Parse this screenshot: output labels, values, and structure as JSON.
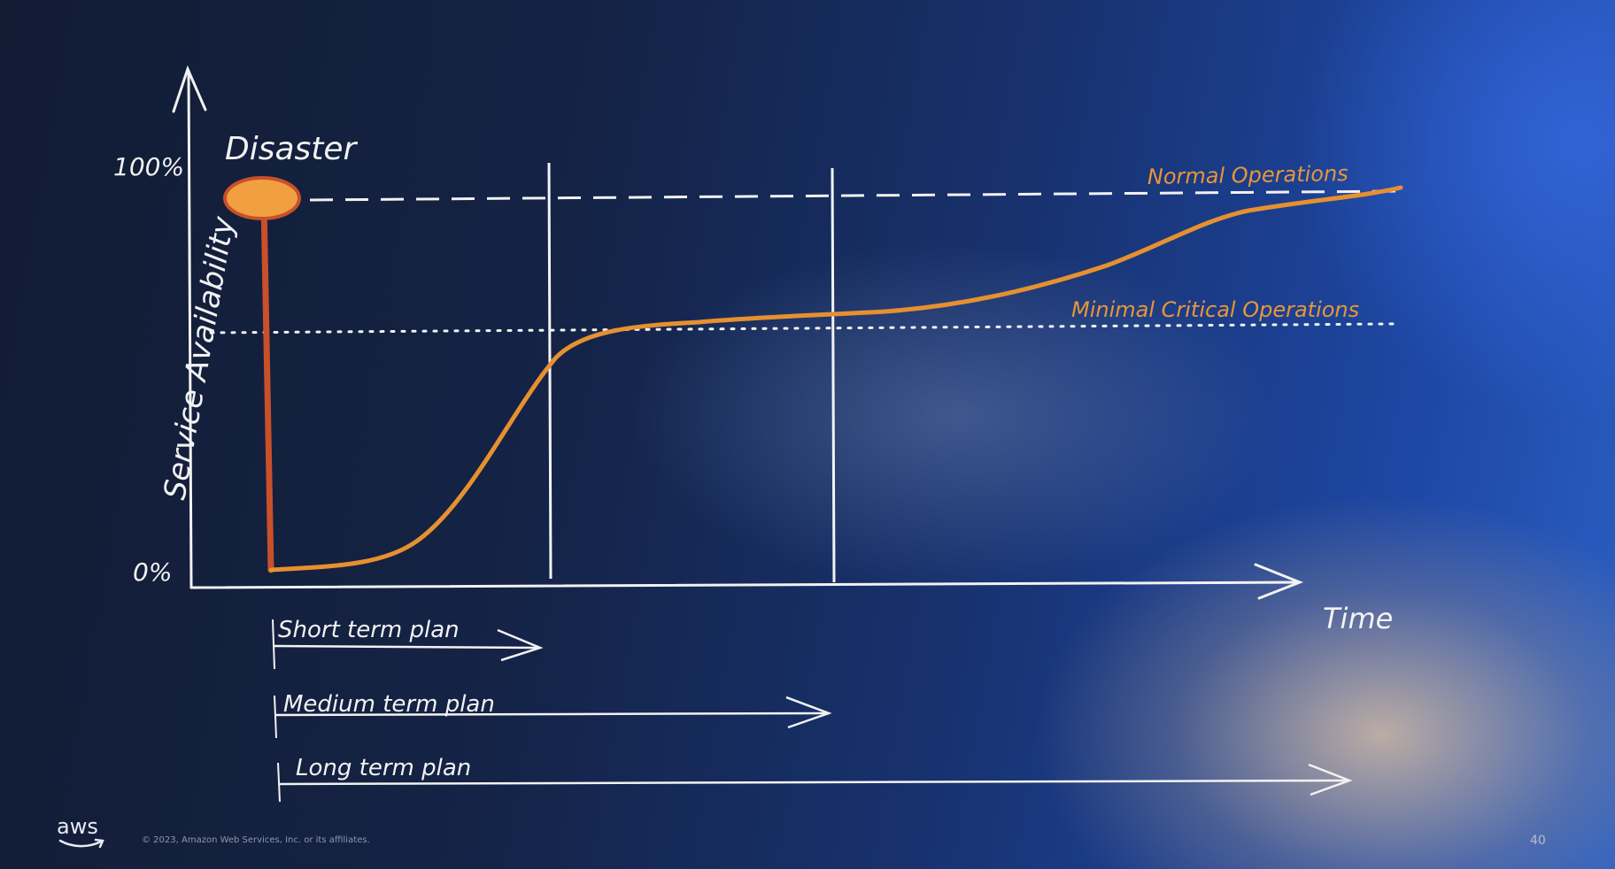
{
  "diagram": {
    "axis_top_label": "100%",
    "axis_bottom_label": "0%",
    "y_axis_title": "Service Availability",
    "x_axis_title": "Time",
    "event_label": "Disaster",
    "normal_line_label": "Normal Operations",
    "minimal_line_label": "Minimal Critical Operations",
    "plans": [
      {
        "label": "Short term plan"
      },
      {
        "label": "Medium term plan"
      },
      {
        "label": "Long term plan"
      }
    ],
    "colors": {
      "curve": "#e69030",
      "disaster_line": "#c8502a",
      "disaster_blob": "#f0a040",
      "chalk": "#f2f2f2",
      "annotation": "#e8963a"
    }
  },
  "footer": {
    "logo_text": "aws",
    "copyright": "© 2023, Amazon Web Services, Inc. or its affiliates.",
    "slide_number": "40"
  }
}
